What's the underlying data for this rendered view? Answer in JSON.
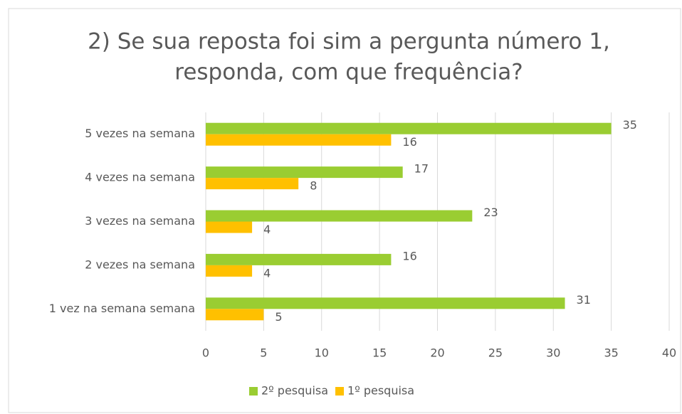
{
  "chart_data": {
    "type": "bar",
    "orientation": "horizontal",
    "title": [
      "2) Se sua reposta foi sim a pergunta número 1,",
      "responda, com que frequência?"
    ],
    "categories": [
      "5 vezes na semana",
      "4 vezes na semana",
      "3 vezes na semana",
      "2 vezes na semana",
      "1 vez na semana semana"
    ],
    "series": [
      {
        "name": "2º pesquisa",
        "color": "#9ACD32",
        "values": [
          35,
          17,
          23,
          16,
          31
        ]
      },
      {
        "name": "1º pesquisa",
        "color": "#FFC000",
        "values": [
          16,
          8,
          4,
          4,
          5
        ]
      }
    ],
    "xlim": [
      0,
      40
    ],
    "xticks": [
      0,
      5,
      10,
      15,
      20,
      25,
      30,
      35,
      40
    ],
    "grid": true,
    "legend": "bottom"
  }
}
